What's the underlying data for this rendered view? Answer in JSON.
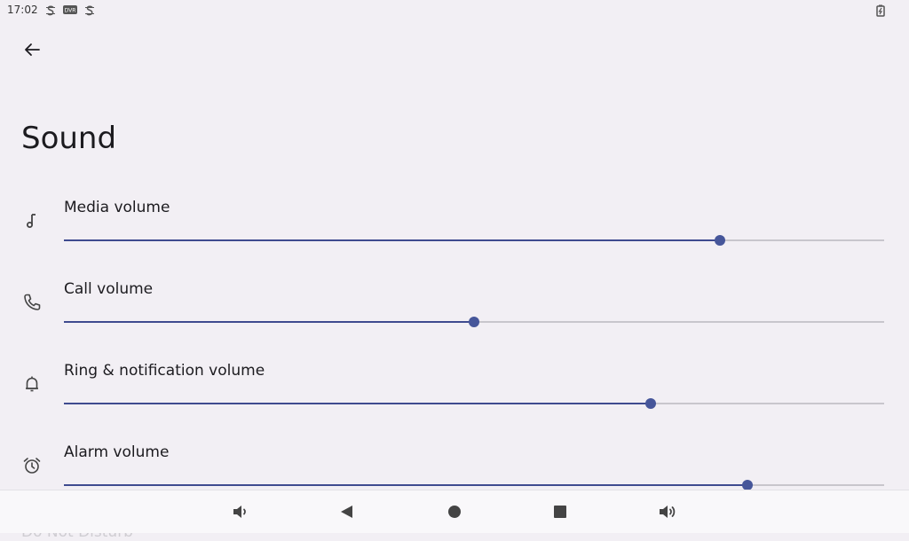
{
  "status_bar": {
    "time": "17:02"
  },
  "page": {
    "title": "Sound"
  },
  "volumes": [
    {
      "label": "Media volume",
      "icon": "music-note-icon",
      "level": 0.8
    },
    {
      "label": "Call volume",
      "icon": "phone-icon",
      "level": 0.5
    },
    {
      "label": "Ring & notification volume",
      "icon": "bell-icon",
      "level": 0.715
    },
    {
      "label": "Alarm volume",
      "icon": "alarm-clock-icon",
      "level": 0.833
    }
  ],
  "next_item": {
    "label": "Do Not Disturb"
  },
  "colors": {
    "accent": "#46569a",
    "background": "#f2eff4"
  }
}
